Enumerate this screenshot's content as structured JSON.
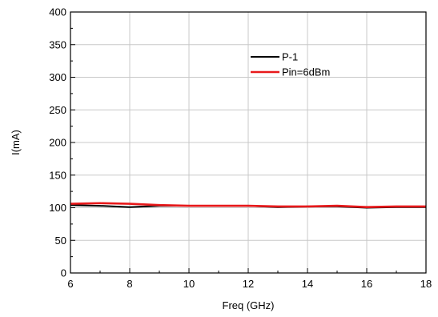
{
  "chart_data": {
    "type": "line",
    "title": "",
    "xlabel": "Freq (GHz)",
    "ylabel": "I(mA)",
    "xlim": [
      6,
      18
    ],
    "ylim": [
      0,
      400
    ],
    "x_ticks": [
      6,
      8,
      10,
      12,
      14,
      16,
      18
    ],
    "y_ticks": [
      0,
      50,
      100,
      150,
      200,
      250,
      300,
      350,
      400
    ],
    "grid": true,
    "legend_position": "top-center",
    "series": [
      {
        "name": "P-1",
        "color": "#000000",
        "x": [
          6,
          7,
          8,
          9,
          10,
          11,
          12,
          13,
          14,
          15,
          16,
          17,
          18
        ],
        "y": [
          104,
          103,
          101,
          103,
          103,
          103,
          103,
          101,
          102,
          102,
          100,
          101,
          101
        ]
      },
      {
        "name": "Pin=6dBm",
        "color": "#e8191b",
        "x": [
          6,
          7,
          8,
          9,
          10,
          11,
          12,
          13,
          14,
          15,
          16,
          17,
          18
        ],
        "y": [
          106,
          107,
          106,
          104,
          103,
          103,
          103,
          102,
          102,
          103,
          101,
          102,
          102
        ]
      }
    ]
  }
}
